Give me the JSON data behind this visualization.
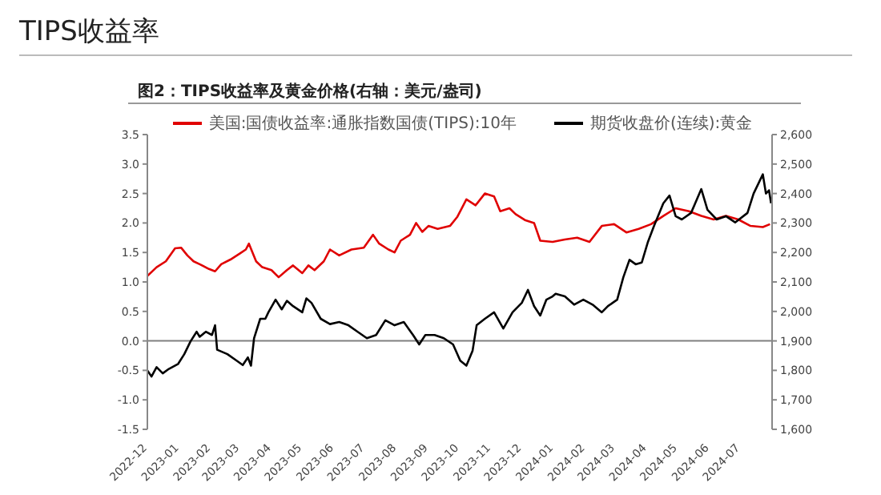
{
  "chart_data": {
    "type": "line",
    "title": "TIPS收益率",
    "subtitle": "图2：TIPS收益率及黄金价格(右轴：美元/盎司)",
    "xlim": [
      "2022-12-01",
      "2024-08-01"
    ],
    "xticks": [
      "2022-12",
      "2023-01",
      "2023-02",
      "2023-03",
      "2023-04",
      "2023-05",
      "2023-06",
      "2023-07",
      "2023-08",
      "2023-09",
      "2023-10",
      "2023-11",
      "2023-12",
      "2024-01",
      "2024-02",
      "2024-03",
      "2024-04",
      "2024-05",
      "2024-06",
      "2024-07"
    ],
    "ylim": [
      -1.5,
      3.5
    ],
    "yticks": [
      -1.5,
      {
        "value": -1,
        "label": "-1.0"
      },
      -0.5,
      {
        "value": 0,
        "label": "0.0"
      },
      0.5,
      {
        "value": 1,
        "label": "1.0"
      },
      1.5,
      {
        "value": 2,
        "label": "2.0"
      },
      2.5,
      {
        "value": 3,
        "label": "3.0"
      },
      3.5
    ],
    "y2lim": [
      1600,
      2600
    ],
    "y2ticks": [
      {
        "value": 1600,
        "label": "1,600"
      },
      {
        "value": 1700,
        "label": "1,700"
      },
      {
        "value": 1800,
        "label": "1,800"
      },
      {
        "value": 1900,
        "label": "1,900"
      },
      {
        "value": 2000,
        "label": "2,000"
      },
      {
        "value": 2100,
        "label": "2,100"
      },
      {
        "value": 2200,
        "label": "2,200"
      },
      {
        "value": 2300,
        "label": "2,300"
      },
      {
        "value": 2400,
        "label": "2,400"
      },
      {
        "value": 2500,
        "label": "2,500"
      },
      {
        "value": 2600,
        "label": "2,600"
      }
    ],
    "grid": false,
    "legend": "top",
    "marker": "none",
    "line_style": "solid",
    "ref_lines": [
      {
        "axis": "y",
        "value": 0,
        "color": "#808080"
      }
    ],
    "series": [
      {
        "name": "美国:国债收益率:通胀指数国债(TIPS):10年",
        "color": "#e00000",
        "axis": "y",
        "x": [
          "2022-12-01",
          "2022-12-10",
          "2022-12-19",
          "2022-12-28",
          "2023-01-03",
          "2023-01-09",
          "2023-01-15",
          "2023-01-21",
          "2023-01-30",
          "2023-02-05",
          "2023-02-11",
          "2023-02-20",
          "2023-03-01",
          "2023-03-07",
          "2023-03-10",
          "2023-03-17",
          "2023-03-23",
          "2023-04-01",
          "2023-04-08",
          "2023-04-16",
          "2023-04-22",
          "2023-05-01",
          "2023-05-07",
          "2023-05-13",
          "2023-05-22",
          "2023-05-28",
          "2023-06-06",
          "2023-06-18",
          "2023-06-30",
          "2023-07-09",
          "2023-07-15",
          "2023-07-24",
          "2023-07-30",
          "2023-08-05",
          "2023-08-14",
          "2023-08-20",
          "2023-08-26",
          "2023-09-01",
          "2023-09-10",
          "2023-09-22",
          "2023-09-29",
          "2023-10-08",
          "2023-10-17",
          "2023-10-26",
          "2023-11-04",
          "2023-11-10",
          "2023-11-19",
          "2023-11-25",
          "2023-12-04",
          "2023-12-13",
          "2023-12-19",
          "2023-12-31",
          "2024-01-12",
          "2024-01-24",
          "2024-02-05",
          "2024-02-17",
          "2024-02-29",
          "2024-03-12",
          "2024-03-24",
          "2024-04-05",
          "2024-04-17",
          "2024-04-29",
          "2024-05-12",
          "2024-05-24",
          "2024-06-05",
          "2024-06-17",
          "2024-06-29",
          "2024-07-11",
          "2024-07-23",
          "2024-07-30"
        ],
        "values": [
          1.1,
          1.25,
          1.35,
          1.57,
          1.58,
          1.45,
          1.35,
          1.3,
          1.22,
          1.18,
          1.3,
          1.38,
          1.48,
          1.55,
          1.65,
          1.35,
          1.25,
          1.2,
          1.08,
          1.2,
          1.28,
          1.15,
          1.28,
          1.2,
          1.35,
          1.55,
          1.45,
          1.55,
          1.58,
          1.8,
          1.65,
          1.55,
          1.5,
          1.7,
          1.8,
          2.0,
          1.85,
          1.95,
          1.9,
          1.95,
          2.1,
          2.4,
          2.3,
          2.5,
          2.45,
          2.2,
          2.25,
          2.15,
          2.05,
          2.0,
          1.7,
          1.68,
          1.72,
          1.75,
          1.68,
          1.95,
          1.98,
          1.84,
          1.9,
          1.98,
          2.12,
          2.25,
          2.2,
          2.12,
          2.06,
          2.12,
          2.06,
          1.95,
          1.93,
          1.98
        ]
      },
      {
        "name": "期货收盘价(连续):黄金",
        "color": "#000000",
        "axis": "y2",
        "x": [
          "2022-12-01",
          "2022-12-05",
          "2022-12-10",
          "2022-12-16",
          "2022-12-22",
          "2022-12-31",
          "2023-01-06",
          "2023-01-12",
          "2023-01-18",
          "2023-01-21",
          "2023-01-27",
          "2023-02-02",
          "2023-02-05",
          "2023-02-07",
          "2023-02-17",
          "2023-02-26",
          "2023-03-04",
          "2023-03-09",
          "2023-03-12",
          "2023-03-15",
          "2023-03-21",
          "2023-03-26",
          "2023-03-29",
          "2023-04-05",
          "2023-04-11",
          "2023-04-16",
          "2023-04-22",
          "2023-05-01",
          "2023-05-05",
          "2023-05-10",
          "2023-05-19",
          "2023-05-28",
          "2023-06-06",
          "2023-06-15",
          "2023-06-24",
          "2023-07-03",
          "2023-07-12",
          "2023-07-21",
          "2023-07-30",
          "2023-08-08",
          "2023-08-17",
          "2023-08-23",
          "2023-08-29",
          "2023-09-07",
          "2023-09-16",
          "2023-09-25",
          "2023-10-02",
          "2023-10-08",
          "2023-10-14",
          "2023-10-18",
          "2023-10-26",
          "2023-11-04",
          "2023-11-13",
          "2023-11-22",
          "2023-12-01",
          "2023-12-07",
          "2023-12-13",
          "2023-12-19",
          "2023-12-25",
          "2023-12-31",
          "2024-01-03",
          "2024-01-12",
          "2024-01-21",
          "2024-01-30",
          "2024-02-08",
          "2024-02-17",
          "2024-02-23",
          "2024-03-03",
          "2024-03-09",
          "2024-03-15",
          "2024-03-21",
          "2024-03-27",
          "2024-04-02",
          "2024-04-08",
          "2024-04-17",
          "2024-04-23",
          "2024-04-29",
          "2024-05-05",
          "2024-05-14",
          "2024-05-24",
          "2024-05-30",
          "2024-06-08",
          "2024-06-17",
          "2024-06-26",
          "2024-07-08",
          "2024-07-14",
          "2024-07-23",
          "2024-07-26",
          "2024-07-29",
          "2024-07-31"
        ],
        "values": [
          1800,
          1779,
          1811,
          1790,
          1805,
          1822,
          1855,
          1898,
          1931,
          1914,
          1931,
          1920,
          1953,
          1870,
          1855,
          1833,
          1818,
          1844,
          1816,
          1909,
          1975,
          1975,
          1997,
          2040,
          2007,
          2036,
          2018,
          1997,
          2044,
          2029,
          1975,
          1957,
          1964,
          1953,
          1931,
          1909,
          1920,
          1970,
          1953,
          1964,
          1920,
          1888,
          1920,
          1920,
          1909,
          1888,
          1833,
          1816,
          1866,
          1953,
          1975,
          1997,
          1942,
          1997,
          2029,
          2073,
          2018,
          1986,
          2040,
          2051,
          2060,
          2051,
          2023,
          2040,
          2023,
          1997,
          2018,
          2040,
          2116,
          2175,
          2160,
          2166,
          2236,
          2291,
          2367,
          2393,
          2323,
          2312,
          2334,
          2415,
          2345,
          2312,
          2323,
          2302,
          2334,
          2400,
          2465,
          2400,
          2411,
          2367
        ]
      }
    ]
  }
}
